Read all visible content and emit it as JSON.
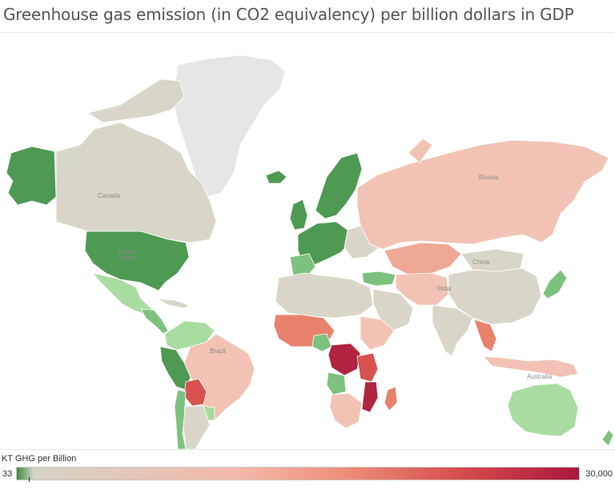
{
  "title": "Greenhouse gas emission (in CO2 equivalency) per billion dollars in GDP",
  "map_labels": {
    "usa": "United\nStates",
    "canada": "Canada",
    "russia": "Russia",
    "china": "China",
    "india": "India",
    "brazil": "Brazil",
    "australia": "Australia"
  },
  "legend": {
    "title": "KT GHG per Billion",
    "min": "33",
    "max": "30,000",
    "colors": [
      "#3c8a3c",
      "#d5d3c8",
      "#f4b8a6",
      "#ec8a75",
      "#d44a4a",
      "#a8173c"
    ]
  },
  "colors": {
    "no_data": "#e6e6e6",
    "dark_green": "#4e9a52",
    "mid_green": "#7cc27e",
    "light_green": "#a8dca0",
    "neutral": "#d9d6c9",
    "light_pink": "#f2c3b4",
    "salmon": "#efa896",
    "orange_red": "#e8826c",
    "red": "#d8524f",
    "dark_red": "#b0243f"
  }
}
